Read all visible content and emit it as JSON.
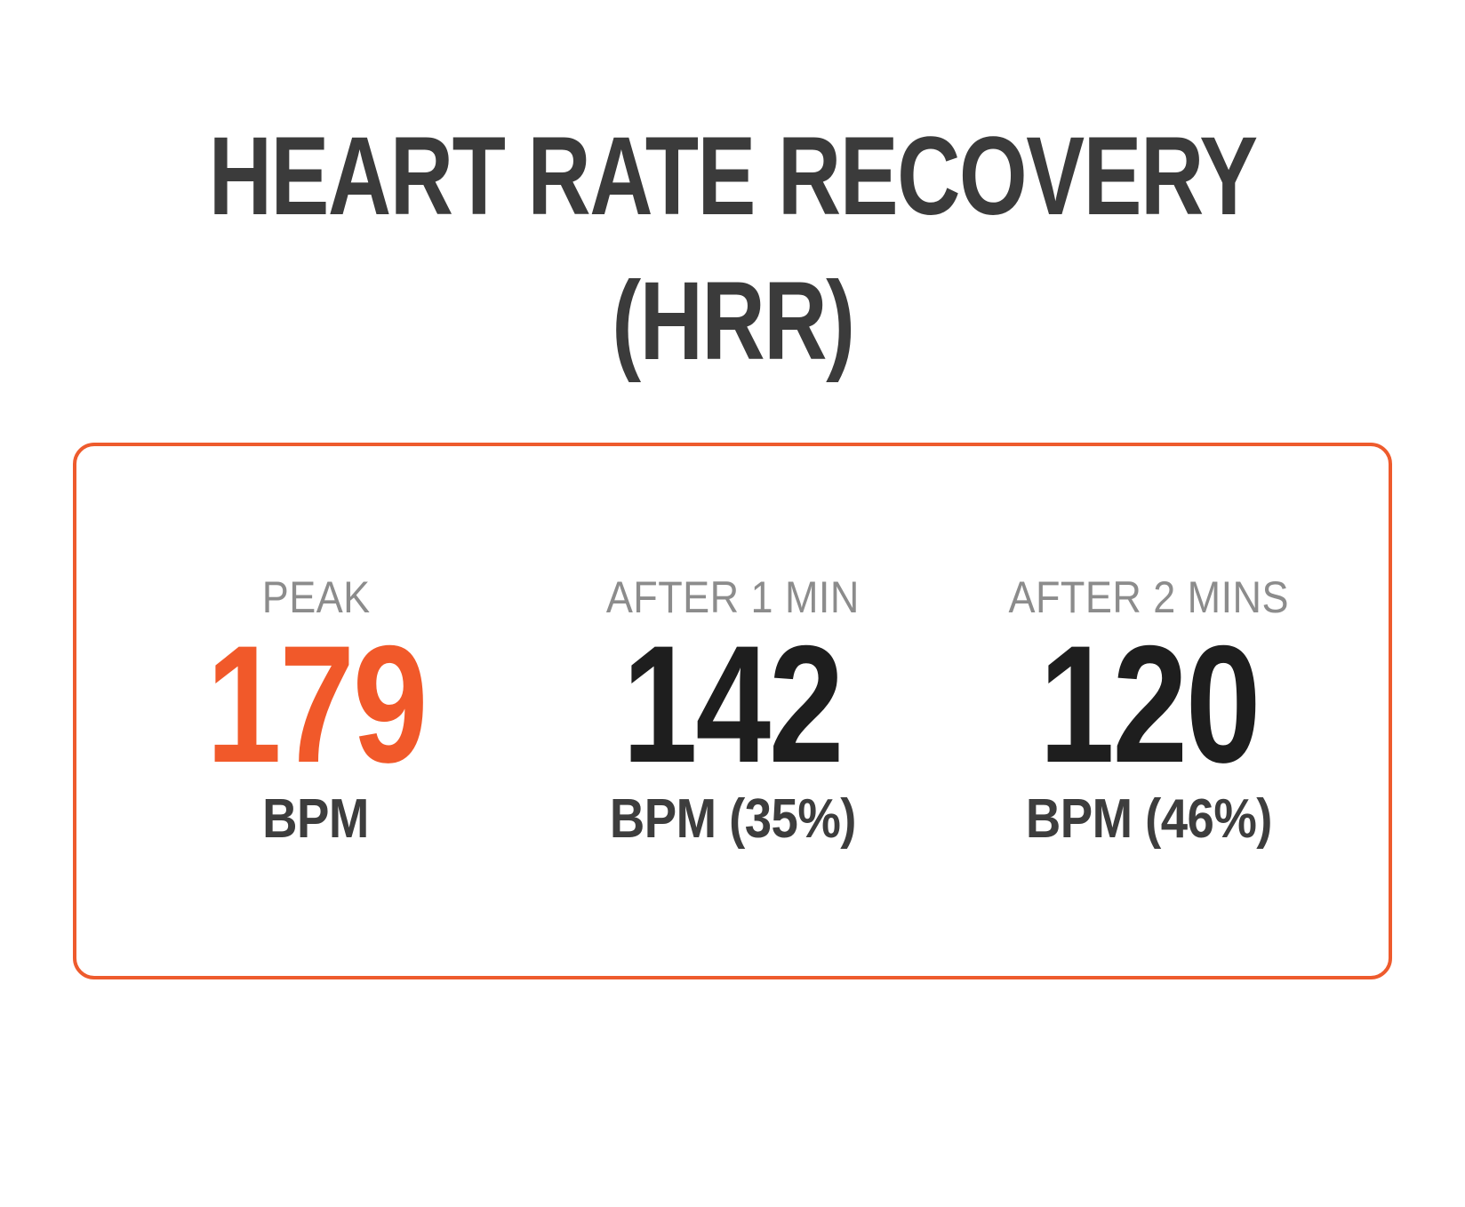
{
  "title": {
    "line1": "HEART RATE RECOVERY",
    "line2": "(HRR)"
  },
  "card": {
    "metrics": [
      {
        "label": "PEAK",
        "value": "179",
        "unit": "BPM",
        "highlight": true
      },
      {
        "label": "AFTER 1 MIN",
        "value": "142",
        "unit": "BPM (35%)",
        "highlight": false
      },
      {
        "label": "AFTER 2 MINS",
        "value": "120",
        "unit": "BPM (46%)",
        "highlight": false
      }
    ]
  },
  "colors": {
    "accent_orange": "#f1592a",
    "card_border": "#ee5b2d",
    "title_text": "#3b3b3b",
    "label_gray": "#8c8c8c",
    "value_dark": "#1e1e1e",
    "unit_dark": "#3d3d3d",
    "background": "#ffffff"
  }
}
